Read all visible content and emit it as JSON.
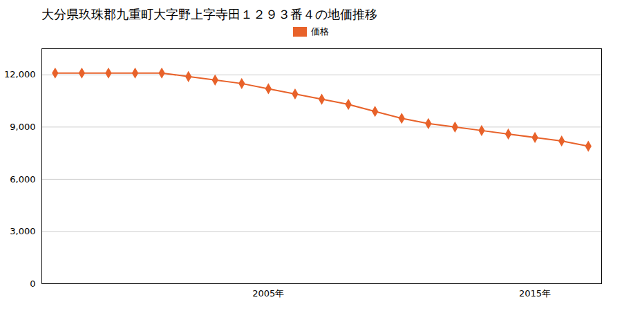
{
  "chart_data": {
    "type": "line",
    "title": "大分県玖珠郡九重町大字野上字寺田１２９３番４の地価推移",
    "x": [
      1997,
      1998,
      1999,
      2000,
      2001,
      2002,
      2003,
      2004,
      2005,
      2006,
      2007,
      2008,
      2009,
      2010,
      2011,
      2012,
      2013,
      2014,
      2015,
      2016,
      2017
    ],
    "series": [
      {
        "name": "価格",
        "color": "#e8622a",
        "marker": "diamond",
        "values": [
          12100,
          12100,
          12100,
          12100,
          12100,
          11900,
          11700,
          11500,
          11200,
          10900,
          10600,
          10300,
          9900,
          9500,
          9200,
          9000,
          8800,
          8600,
          8400,
          8200,
          7900
        ]
      }
    ],
    "xlim": [
      1996.5,
      2017.5
    ],
    "xticks": [
      {
        "value": 2005,
        "label": "2005年"
      },
      {
        "value": 2015,
        "label": "2015年"
      }
    ],
    "ylim": [
      0,
      13500
    ],
    "yticks": [
      0,
      {
        "value": 3000,
        "label": "3,000"
      },
      {
        "value": 6000,
        "label": "6,000"
      },
      {
        "value": 9000,
        "label": "9,000"
      },
      {
        "value": 12000,
        "label": "12,000"
      }
    ],
    "grid": "y",
    "legend": "top"
  }
}
